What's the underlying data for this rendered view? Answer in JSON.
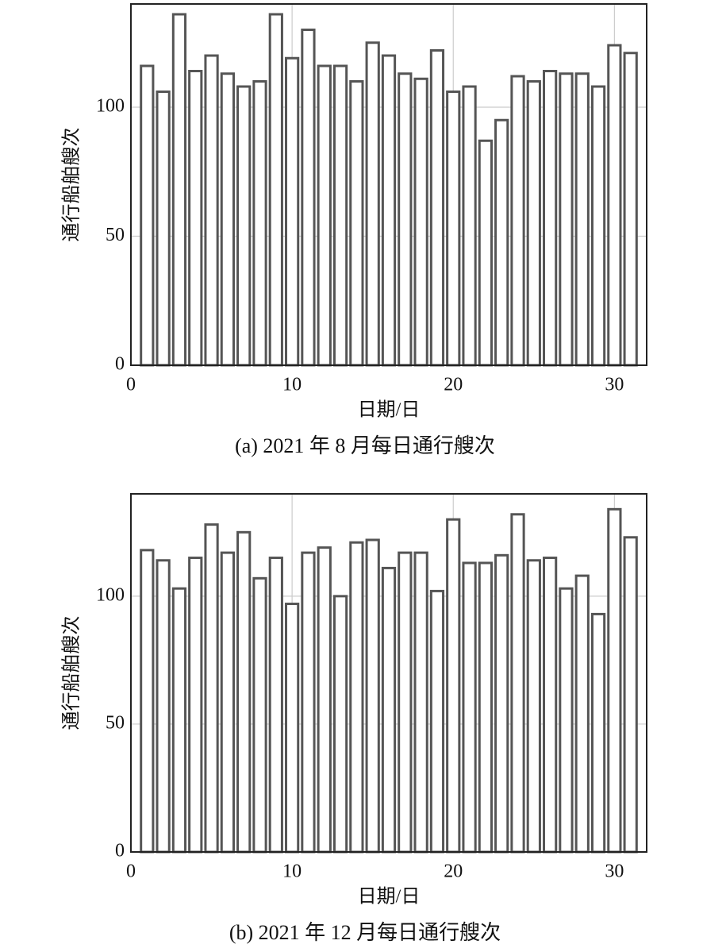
{
  "chart_data": [
    {
      "type": "bar",
      "caption": "(a) 2021 年 8 月每日通行艘次",
      "xlabel": "日期/日",
      "ylabel": "通行船舶艘次",
      "x": [
        1,
        2,
        3,
        4,
        5,
        6,
        7,
        8,
        9,
        10,
        11,
        12,
        13,
        14,
        15,
        16,
        17,
        18,
        19,
        20,
        21,
        22,
        23,
        24,
        25,
        26,
        27,
        28,
        29,
        30,
        31
      ],
      "values": [
        116,
        106,
        136,
        114,
        120,
        113,
        108,
        110,
        136,
        119,
        130,
        116,
        116,
        110,
        125,
        120,
        113,
        111,
        122,
        106,
        108,
        87,
        95,
        112,
        110,
        114,
        113,
        113,
        108,
        124,
        121
      ],
      "xlim": [
        0,
        32
      ],
      "xticks": [
        0,
        10,
        20,
        30
      ],
      "ylim": [
        0,
        140
      ],
      "yticks": [
        0,
        50,
        100
      ],
      "grid": true,
      "color": "#ffffff"
    },
    {
      "type": "bar",
      "caption": "(b) 2021 年 12 月每日通行艘次",
      "xlabel": "日期/日",
      "ylabel": "通行船舶艘次",
      "x": [
        1,
        2,
        3,
        4,
        5,
        6,
        7,
        8,
        9,
        10,
        11,
        12,
        13,
        14,
        15,
        16,
        17,
        18,
        19,
        20,
        21,
        22,
        23,
        24,
        25,
        26,
        27,
        28,
        29,
        30,
        31
      ],
      "values": [
        118,
        114,
        103,
        115,
        128,
        117,
        125,
        107,
        115,
        97,
        117,
        119,
        100,
        121,
        122,
        111,
        117,
        117,
        102,
        130,
        113,
        113,
        116,
        132,
        114,
        115,
        103,
        108,
        93,
        134,
        123
      ],
      "xlim": [
        0,
        32
      ],
      "xticks": [
        0,
        10,
        20,
        30
      ],
      "ylim": [
        0,
        140
      ],
      "yticks": [
        0,
        50,
        100
      ],
      "grid": true,
      "color": "#ffffff"
    }
  ]
}
